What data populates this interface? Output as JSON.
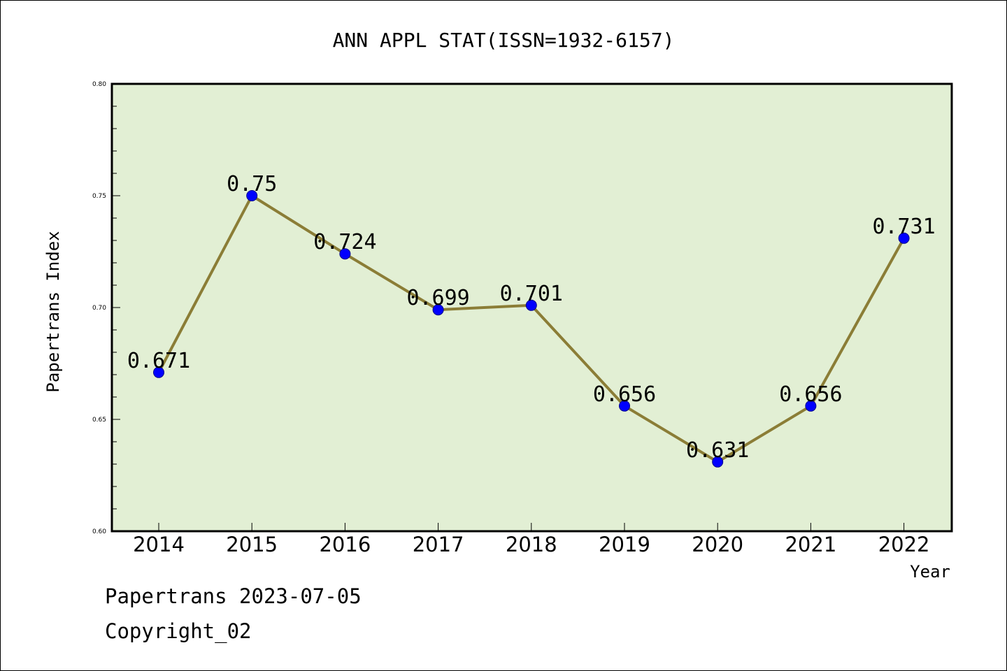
{
  "chart_data": {
    "type": "line",
    "title": "ANN APPL STAT(ISSN=1932-6157)",
    "xlabel": "Year",
    "ylabel": "Papertrans Index",
    "categories": [
      "2014",
      "2015",
      "2016",
      "2017",
      "2018",
      "2019",
      "2020",
      "2021",
      "2022"
    ],
    "series": [
      {
        "values": [
          0.671,
          0.75,
          0.724,
          0.699,
          0.701,
          0.656,
          0.631,
          0.656,
          0.731
        ]
      }
    ],
    "data_labels": [
      "0.671",
      "0.75",
      "0.724",
      "0.699",
      "0.701",
      "0.656",
      "0.631",
      "0.656",
      "0.731"
    ],
    "ylim": [
      0.6,
      0.8
    ],
    "y_ticks": [
      "0.60",
      "0.65",
      "0.70",
      "0.75",
      "0.80"
    ],
    "grid": false,
    "legend": "none",
    "colors": {
      "plot_background": "#e2efd4",
      "line": "#8b7d36",
      "marker": "#0000ff",
      "axis": "#000000"
    }
  },
  "footer": {
    "line1": "Papertrans 2023-07-05",
    "line2": "Copyright_02"
  }
}
